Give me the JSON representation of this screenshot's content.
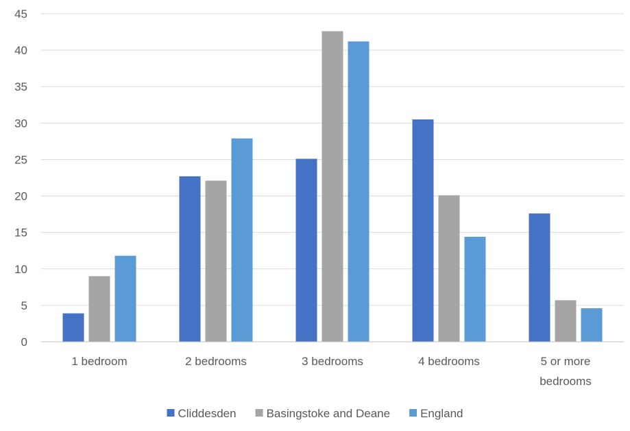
{
  "chart_data": {
    "type": "bar",
    "title": "",
    "xlabel": "",
    "ylabel": "",
    "categories": [
      [
        "1 bedroom"
      ],
      [
        "2 bedrooms"
      ],
      [
        "3 bedrooms"
      ],
      [
        "4 bedrooms"
      ],
      [
        "5 or more",
        "bedrooms"
      ]
    ],
    "series": [
      {
        "name": "Cliddesden",
        "color": "#4472C4",
        "values": [
          3.9,
          22.7,
          25.1,
          30.5,
          17.6
        ]
      },
      {
        "name": "Basingstoke and Deane",
        "color": "#A5A5A5",
        "values": [
          9.0,
          22.1,
          42.6,
          20.1,
          5.7
        ]
      },
      {
        "name": "England",
        "color": "#5B9BD5",
        "values": [
          11.8,
          27.9,
          41.2,
          14.4,
          4.6
        ]
      }
    ],
    "ylim": [
      0,
      45
    ],
    "yticks": [
      0,
      5,
      10,
      15,
      20,
      25,
      30,
      35,
      40,
      45
    ],
    "grid": true,
    "legend_position": "bottom",
    "gridline_color": "#D9D9D9",
    "axis_color": "#BFBFBF"
  }
}
